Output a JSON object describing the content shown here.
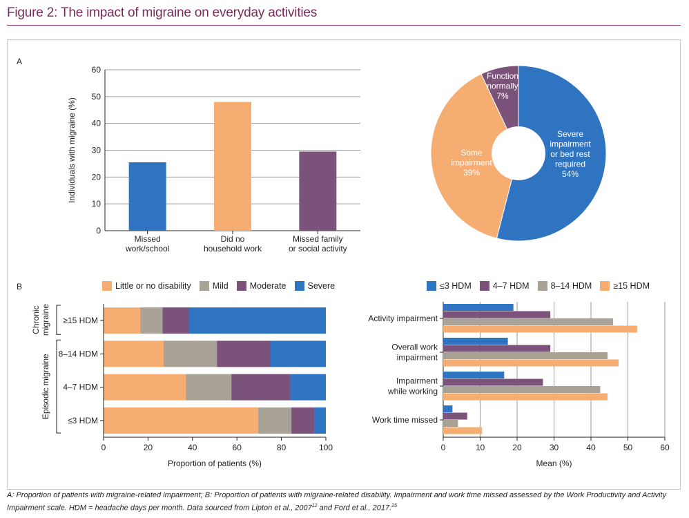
{
  "figure": {
    "title": "Figure 2: The impact of migraine on everyday activities",
    "caption": "A: Proportion of patients with migraine-related impairment; B: Proportion of patients with migraine-related disability. Impairment and work time missed assessed by the Work Productivity and Activity Impairment scale. HDM = headache days per month. Data sourced from Lipton et al., 2007",
    "caption_ref1": "12",
    "caption_mid": " and Ford et al., 2017.",
    "caption_ref2": "25",
    "panel_a_label": "A",
    "panel_b_label": "B"
  },
  "colors": {
    "blue": "#2e74c0",
    "orange": "#f5ad72",
    "purple": "#7a527a",
    "grey": "#a9a296"
  },
  "chart_data": [
    {
      "id": "A-bar",
      "type": "bar",
      "categories": [
        [
          "Missed",
          "work/school"
        ],
        [
          "Did no",
          "household work"
        ],
        [
          "Missed family",
          "or social activity"
        ]
      ],
      "values": [
        25.5,
        48,
        29.5
      ],
      "bar_colors": [
        "#2e74c0",
        "#f5ad72",
        "#7a527a"
      ],
      "ylabel": "Individuals with migraine (%)",
      "ylim": [
        0,
        60
      ],
      "yticks": [
        0,
        10,
        20,
        30,
        40,
        50,
        60
      ],
      "grid": true
    },
    {
      "id": "A-pie",
      "type": "pie",
      "donut": true,
      "slices": [
        {
          "label": [
            "Severe",
            "impairment",
            "or bed rest",
            "required"
          ],
          "pct_label": "54%",
          "value": 54,
          "color": "#2e74c0"
        },
        {
          "label": [
            "Some",
            "impairment"
          ],
          "pct_label": "39%",
          "value": 39,
          "color": "#f5ad72"
        },
        {
          "label": [
            "Function",
            "normally"
          ],
          "pct_label": "7%",
          "value": 7,
          "color": "#7a527a"
        }
      ]
    },
    {
      "id": "B-stacked",
      "type": "bar",
      "orientation": "horizontal",
      "stacked": true,
      "categories": [
        "≥15 HDM",
        "8–14 HDM",
        "4–7 HDM",
        "≤3 HDM"
      ],
      "groups": [
        {
          "label": [
            "Chronic",
            "migraine"
          ],
          "categories": [
            "≥15 HDM"
          ]
        },
        {
          "label": [
            "Episodic migraine"
          ],
          "categories": [
            "8–14 HDM",
            "4–7 HDM",
            "≤3 HDM"
          ]
        }
      ],
      "series": [
        {
          "name": "Little or no disability",
          "color": "#f5ad72",
          "values": [
            16.5,
            27,
            37,
            69.5
          ]
        },
        {
          "name": "Mild",
          "color": "#a9a296",
          "values": [
            10,
            24,
            20.5,
            15
          ]
        },
        {
          "name": "Moderate",
          "color": "#7a527a",
          "values": [
            12,
            24,
            26.5,
            10.5
          ]
        },
        {
          "name": "Severe",
          "color": "#2e74c0",
          "values": [
            61.5,
            25,
            16,
            5
          ]
        }
      ],
      "xlabel": "Proportion of patients (%)",
      "xlim": [
        0,
        100
      ],
      "xticks": [
        0,
        20,
        40,
        60,
        80,
        100
      ],
      "legend_position": "top"
    },
    {
      "id": "B-grouped",
      "type": "bar",
      "orientation": "horizontal",
      "categories": [
        [
          "Activity impairment"
        ],
        [
          "Overall work",
          "impairment"
        ],
        [
          "Impairment",
          "while working"
        ],
        [
          "Work time missed"
        ]
      ],
      "series": [
        {
          "name": "≤3 HDM",
          "color": "#2e74c0",
          "values": [
            19,
            17.5,
            16.5,
            2.5
          ]
        },
        {
          "name": "4–7 HDM",
          "color": "#7a527a",
          "values": [
            29,
            29,
            27,
            6.5
          ]
        },
        {
          "name": "8–14 HDM",
          "color": "#a9a296",
          "values": [
            46,
            44.5,
            42.5,
            4
          ]
        },
        {
          "name": "≥15 HDM",
          "color": "#f5ad72",
          "values": [
            52.5,
            47.5,
            44.5,
            10.5
          ]
        }
      ],
      "xlabel": "Mean (%)",
      "xlim": [
        0,
        60
      ],
      "xticks": [
        0,
        10,
        20,
        30,
        40,
        50,
        60
      ],
      "grid": true,
      "legend_position": "top"
    }
  ]
}
